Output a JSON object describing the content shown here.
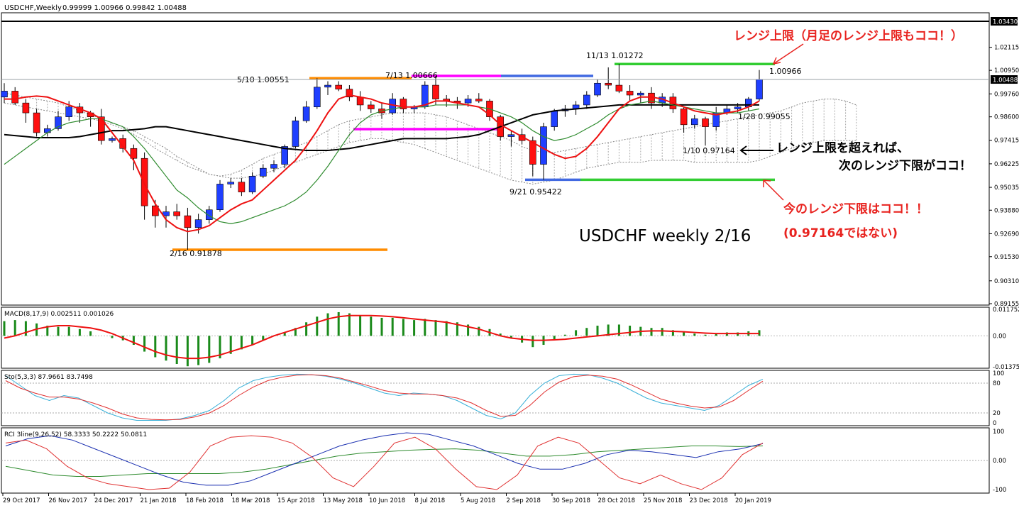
{
  "chart_data": {
    "type": "candlestick",
    "symbol_header": "USDCHF,Weekly",
    "ohlc_header": "0.99999 1.00966 0.99842 1.00488",
    "price_axis_labels": [
      "1.03430",
      "1.02115",
      "1.00950",
      "1.00488",
      "0.99760",
      "0.98600",
      "0.97415",
      "0.96225",
      "0.95035",
      "0.93880",
      "0.92690",
      "0.91530",
      "0.90310",
      "0.89155"
    ],
    "current_price_label": "1.00488",
    "top_price_label": "1.03430",
    "ylim": [
      0.89155,
      1.0343
    ],
    "date_labels": [
      "29 Oct 2017",
      "26 Nov 2017",
      "24 Dec 2017",
      "21 Jan 2018",
      "18 Feb 2018",
      "18 Mar 2018",
      "15 Apr 2018",
      "13 May 2018",
      "10 Jun 2018",
      "8 Jul 2018",
      "5 Aug 2018",
      "2 Sep 2018",
      "30 Sep 2018",
      "28 Oct 2018",
      "25 Nov 2018",
      "23 Dec 2018",
      "20 Jan 2019"
    ],
    "candles": [
      [
        0.996,
        1.003,
        0.993,
        0.999
      ],
      [
        0.999,
        1.001,
        0.992,
        0.993
      ],
      [
        0.993,
        0.995,
        0.983,
        0.988
      ],
      [
        0.988,
        0.99,
        0.976,
        0.978
      ],
      [
        0.978,
        0.982,
        0.976,
        0.98
      ],
      [
        0.98,
        0.989,
        0.979,
        0.986
      ],
      [
        0.986,
        0.994,
        0.984,
        0.991
      ],
      [
        0.991,
        0.993,
        0.983,
        0.988
      ],
      [
        0.988,
        0.989,
        0.981,
        0.986
      ],
      [
        0.986,
        0.99,
        0.972,
        0.974
      ],
      [
        0.974,
        0.976,
        0.973,
        0.975
      ],
      [
        0.975,
        0.977,
        0.968,
        0.97
      ],
      [
        0.97,
        0.972,
        0.959,
        0.965
      ],
      [
        0.965,
        0.968,
        0.934,
        0.941
      ],
      [
        0.941,
        0.944,
        0.93,
        0.936
      ],
      [
        0.936,
        0.941,
        0.93,
        0.938
      ],
      [
        0.938,
        0.942,
        0.934,
        0.936
      ],
      [
        0.936,
        0.94,
        0.9188,
        0.93
      ],
      [
        0.93,
        0.937,
        0.927,
        0.934
      ],
      [
        0.934,
        0.941,
        0.932,
        0.939
      ],
      [
        0.939,
        0.954,
        0.938,
        0.952
      ],
      [
        0.952,
        0.955,
        0.95,
        0.953
      ],
      [
        0.953,
        0.955,
        0.946,
        0.948
      ],
      [
        0.948,
        0.958,
        0.947,
        0.956
      ],
      [
        0.956,
        0.962,
        0.955,
        0.96
      ],
      [
        0.96,
        0.964,
        0.958,
        0.962
      ],
      [
        0.962,
        0.972,
        0.96,
        0.971
      ],
      [
        0.971,
        0.986,
        0.97,
        0.984
      ],
      [
        0.984,
        0.994,
        0.983,
        0.991
      ],
      [
        0.991,
        1.0055,
        0.99,
        1.001
      ],
      [
        1.001,
        1.004,
        0.997,
        1.002
      ],
      [
        1.002,
        1.004,
        0.999,
        1.0
      ],
      [
        1.0,
        1.002,
        0.994,
        0.996
      ],
      [
        0.996,
        0.999,
        0.989,
        0.992
      ],
      [
        0.992,
        0.994,
        0.988,
        0.99
      ],
      [
        0.99,
        0.993,
        0.985,
        0.988
      ],
      [
        0.988,
        0.998,
        0.987,
        0.995
      ],
      [
        0.995,
        0.996,
        0.988,
        0.99
      ],
      [
        0.99,
        0.992,
        0.988,
        0.991
      ],
      [
        0.991,
        1.004,
        0.99,
        1.002
      ],
      [
        1.002,
        1.0067,
        0.992,
        0.995
      ],
      [
        0.995,
        0.997,
        0.991,
        0.994
      ],
      [
        0.994,
        0.996,
        0.99,
        0.993
      ],
      [
        0.993,
        0.997,
        0.991,
        0.995
      ],
      [
        0.995,
        0.998,
        0.993,
        0.994
      ],
      [
        0.994,
        0.995,
        0.984,
        0.986
      ],
      [
        0.986,
        0.987,
        0.974,
        0.976
      ],
      [
        0.976,
        0.979,
        0.971,
        0.977
      ],
      [
        0.977,
        0.98,
        0.972,
        0.974
      ],
      [
        0.974,
        0.976,
        0.956,
        0.962
      ],
      [
        0.962,
        0.983,
        0.9542,
        0.981
      ],
      [
        0.981,
        0.99,
        0.979,
        0.989
      ],
      [
        0.989,
        0.992,
        0.986,
        0.99
      ],
      [
        0.99,
        0.994,
        0.987,
        0.992
      ],
      [
        0.992,
        0.999,
        0.99,
        0.997
      ],
      [
        0.997,
        1.005,
        0.996,
        1.003
      ],
      [
        1.003,
        1.011,
        1.0,
        1.002
      ],
      [
        1.002,
        1.0127,
        0.998,
        0.999
      ],
      [
        0.999,
        1.002,
        0.994,
        0.997
      ],
      [
        0.997,
        0.999,
        0.993,
        0.998
      ],
      [
        0.998,
        1.001,
        0.99,
        0.993
      ],
      [
        0.993,
        0.998,
        0.991,
        0.996
      ],
      [
        0.996,
        0.998,
        0.988,
        0.99
      ],
      [
        0.99,
        0.991,
        0.978,
        0.982
      ],
      [
        0.982,
        0.987,
        0.98,
        0.985
      ],
      [
        0.985,
        0.986,
        0.9716,
        0.981
      ],
      [
        0.981,
        0.991,
        0.979,
        0.988
      ],
      [
        0.988,
        0.992,
        0.987,
        0.99
      ],
      [
        0.99,
        0.993,
        0.988,
        0.991
      ],
      [
        0.991,
        0.996,
        0.989,
        0.995
      ],
      [
        0.995,
        1.0097,
        0.994,
        1.0049
      ]
    ],
    "ma_fast": [
      0.995,
      0.995,
      0.996,
      0.9965,
      0.996,
      0.994,
      0.992,
      0.99,
      0.988,
      0.985,
      0.978,
      0.971,
      0.964,
      0.952,
      0.942,
      0.934,
      0.93,
      0.928,
      0.929,
      0.931,
      0.935,
      0.939,
      0.942,
      0.944,
      0.949,
      0.954,
      0.959,
      0.964,
      0.971,
      0.979,
      0.988,
      0.995,
      0.997,
      0.996,
      0.995,
      0.993,
      0.992,
      0.991,
      0.991,
      0.992,
      0.994,
      0.994,
      0.993,
      0.992,
      0.991,
      0.987,
      0.982,
      0.979,
      0.976,
      0.973,
      0.97,
      0.967,
      0.965,
      0.966,
      0.97,
      0.976,
      0.983,
      0.99,
      0.994,
      0.996,
      0.996,
      0.995,
      0.993,
      0.991,
      0.989,
      0.988,
      0.987,
      0.988,
      0.989,
      0.991,
      0.994
    ],
    "ma_mid": [
      0.962,
      0.966,
      0.97,
      0.974,
      0.978,
      0.981,
      0.983,
      0.984,
      0.985,
      0.985,
      0.983,
      0.981,
      0.976,
      0.97,
      0.963,
      0.956,
      0.949,
      0.945,
      0.94,
      0.936,
      0.933,
      0.932,
      0.933,
      0.935,
      0.937,
      0.939,
      0.941,
      0.944,
      0.948,
      0.954,
      0.961,
      0.969,
      0.977,
      0.983,
      0.987,
      0.989,
      0.99,
      0.991,
      0.991,
      0.991,
      0.992,
      0.992,
      0.992,
      0.992,
      0.991,
      0.99,
      0.988,
      0.986,
      0.983,
      0.979,
      0.976,
      0.974,
      0.975,
      0.977,
      0.98,
      0.983,
      0.987,
      0.99,
      0.992,
      0.993,
      0.994,
      0.993,
      0.992,
      0.991,
      0.99,
      0.989,
      0.988,
      0.988,
      0.988,
      0.989,
      0.99
    ],
    "ma_slow": [
      0.977,
      0.9765,
      0.976,
      0.9755,
      0.9755,
      0.9755,
      0.9755,
      0.976,
      0.977,
      0.978,
      0.979,
      0.979,
      0.9795,
      0.98,
      0.981,
      0.981,
      0.98,
      0.979,
      0.978,
      0.977,
      0.976,
      0.975,
      0.974,
      0.973,
      0.972,
      0.971,
      0.97,
      0.9695,
      0.969,
      0.969,
      0.969,
      0.9695,
      0.97,
      0.971,
      0.972,
      0.973,
      0.974,
      0.975,
      0.975,
      0.975,
      0.975,
      0.975,
      0.9755,
      0.976,
      0.977,
      0.979,
      0.981,
      0.983,
      0.985,
      0.987,
      0.988,
      0.989,
      0.9895,
      0.99,
      0.9905,
      0.991,
      0.9915,
      0.992,
      0.992,
      0.992,
      0.992,
      0.992,
      0.992,
      0.992,
      0.992,
      0.992,
      0.992,
      0.992,
      0.992,
      0.992,
      0.992
    ],
    "cloud_top": [
      0.998,
      0.997,
      0.996,
      0.995,
      0.994,
      0.993,
      0.991,
      0.989,
      0.987,
      0.985,
      0.983,
      0.981,
      0.979,
      0.976,
      0.973,
      0.97,
      0.966,
      0.963,
      0.96,
      0.957,
      0.956,
      0.957,
      0.959,
      0.962,
      0.965,
      0.967,
      0.969,
      0.971,
      0.973,
      0.976,
      0.979,
      0.982,
      0.984,
      0.985,
      0.986,
      0.987,
      0.988,
      0.988,
      0.988,
      0.988,
      0.987,
      0.986,
      0.984,
      0.982,
      0.98,
      0.978,
      0.976,
      0.974,
      0.971,
      0.969,
      0.968,
      0.968,
      0.969,
      0.97,
      0.971,
      0.972,
      0.973,
      0.974,
      0.975,
      0.976,
      0.977,
      0.978,
      0.979,
      0.98,
      0.981,
      0.982,
      0.983,
      0.984,
      0.985,
      0.986,
      0.987,
      0.988,
      0.989,
      0.991,
      0.993,
      0.994,
      0.995,
      0.995,
      0.994,
      0.992
    ],
    "cloud_bottom": [
      0.993,
      0.992,
      0.991,
      0.99,
      0.989,
      0.988,
      0.987,
      0.986,
      0.985,
      0.984,
      0.982,
      0.98,
      0.977,
      0.974,
      0.97,
      0.967,
      0.964,
      0.961,
      0.959,
      0.957,
      0.956,
      0.955,
      0.955,
      0.956,
      0.957,
      0.959,
      0.961,
      0.963,
      0.965,
      0.967,
      0.969,
      0.971,
      0.973,
      0.974,
      0.975,
      0.975,
      0.974,
      0.973,
      0.972,
      0.97,
      0.968,
      0.966,
      0.964,
      0.962,
      0.96,
      0.958,
      0.956,
      0.954,
      0.953,
      0.952,
      0.953,
      0.954,
      0.956,
      0.958,
      0.96,
      0.961,
      0.962,
      0.963,
      0.963,
      0.963,
      0.964,
      0.964,
      0.964,
      0.964,
      0.963,
      0.963,
      0.963,
      0.963,
      0.963,
      0.963,
      0.964,
      0.966,
      0.968,
      0.97,
      0.972,
      0.973,
      0.974,
      0.974,
      0.974,
      0.974
    ],
    "price_annotations": [
      {
        "text": "5/10 1.00551",
        "price": 1.0055
      },
      {
        "text": "7/13 1.00666",
        "price": 1.0067
      },
      {
        "text": "11/13 1.01272",
        "price": 1.0127
      },
      {
        "text": "1.00966",
        "price": 1.0097
      },
      {
        "text": "1/28 0.99055",
        "price": 0.9906
      },
      {
        "text": "1/10 0.97164",
        "price": 0.9716
      },
      {
        "text": "9/21 0.95422",
        "price": 0.9542
      },
      {
        "text": "2/16 0.91878",
        "price": 0.9188
      }
    ],
    "levels": [
      {
        "name": "orange-top",
        "price": 1.0055,
        "color": "#FF8C00"
      },
      {
        "name": "orange-bottom",
        "price": 0.9188,
        "color": "#FF8C00"
      },
      {
        "name": "magenta-top",
        "price": 1.0067,
        "color": "#FF00FF"
      },
      {
        "name": "magenta-bottom",
        "price": 0.9798,
        "color": "#FF00FF"
      },
      {
        "name": "blue-top",
        "price": 1.0067,
        "color": "#4169E1"
      },
      {
        "name": "blue-bottom",
        "price": 0.9542,
        "color": "#4169E1"
      },
      {
        "name": "green-top",
        "price": 1.0127,
        "color": "#32CD32"
      },
      {
        "name": "green-bottom",
        "price": 0.9542,
        "color": "#32CD32"
      }
    ],
    "text_annotations": {
      "range_top": "レンジ上限（月足のレンジ上限もココ！）",
      "exceed_line1": "レンジ上限を超えれば、",
      "exceed_line2": "次のレンジ下限がココ！",
      "range_bottom": "今のレンジ下限はココ！！",
      "not_value": "(0.97164ではない)",
      "title_overlay": "USDCHF weekly 2/16"
    },
    "macd": {
      "label": "MACD(8,17,9) 0.002511 0.001026",
      "axis_labels": [
        "0.011752",
        "0.00",
        "-0.013751"
      ],
      "ylim": [
        -0.013751,
        0.011752
      ],
      "histogram": [
        0.0065,
        0.007,
        0.0065,
        0.0055,
        0.0045,
        0.004,
        0.004,
        0.003,
        0.002,
        0.0,
        -0.001,
        -0.002,
        -0.004,
        -0.007,
        -0.0095,
        -0.011,
        -0.0125,
        -0.0135,
        -0.013,
        -0.012,
        -0.01,
        -0.008,
        -0.006,
        -0.004,
        -0.002,
        0.0,
        0.0015,
        0.0035,
        0.006,
        0.0085,
        0.01,
        0.0105,
        0.01,
        0.009,
        0.0085,
        0.008,
        0.008,
        0.0075,
        0.007,
        0.0075,
        0.007,
        0.0065,
        0.006,
        0.005,
        0.004,
        0.003,
        0.001,
        -0.001,
        -0.003,
        -0.005,
        -0.004,
        -0.0015,
        0.0005,
        0.0025,
        0.0035,
        0.0045,
        0.005,
        0.005,
        0.0045,
        0.004,
        0.0035,
        0.0035,
        0.0025,
        0.002,
        0.001,
        0.0005,
        0.001,
        0.0015,
        0.0015,
        0.002,
        0.0025
      ],
      "signal": [
        -0.001,
        0.0,
        0.0015,
        0.003,
        0.004,
        0.0045,
        0.0045,
        0.004,
        0.0035,
        0.0025,
        0.001,
        -0.001,
        -0.003,
        -0.005,
        -0.007,
        -0.0085,
        -0.0095,
        -0.01,
        -0.01,
        -0.0095,
        -0.0085,
        -0.007,
        -0.0055,
        -0.004,
        -0.002,
        0.0,
        0.0015,
        0.003,
        0.0045,
        0.006,
        0.0075,
        0.0085,
        0.009,
        0.009,
        0.009,
        0.0088,
        0.0085,
        0.008,
        0.0075,
        0.007,
        0.0065,
        0.006,
        0.005,
        0.004,
        0.003,
        0.0015,
        0.0,
        -0.001,
        -0.0015,
        -0.002,
        -0.002,
        -0.0018,
        -0.0015,
        -0.001,
        -0.0005,
        0.0,
        0.0005,
        0.001,
        0.0015,
        0.002,
        0.0022,
        0.0022,
        0.002,
        0.0018,
        0.0015,
        0.0012,
        0.001,
        0.001,
        0.001,
        0.001,
        0.001
      ]
    },
    "stoch": {
      "label": "Sto(5,3,3) 87.9661 83.7498",
      "axis_labels": [
        "100",
        "80",
        "20",
        "0"
      ],
      "main": [
        95,
        75,
        55,
        45,
        55,
        50,
        35,
        20,
        10,
        5,
        5,
        5,
        8,
        15,
        25,
        45,
        70,
        85,
        92,
        96,
        98,
        97,
        94,
        88,
        80,
        70,
        60,
        55,
        60,
        58,
        55,
        45,
        30,
        15,
        8,
        20,
        55,
        80,
        95,
        98,
        97,
        90,
        80,
        65,
        50,
        40,
        35,
        30,
        25,
        35,
        55,
        75,
        88
      ],
      "signal": [
        85,
        70,
        60,
        52,
        52,
        48,
        40,
        30,
        18,
        10,
        7,
        6,
        7,
        12,
        20,
        35,
        55,
        72,
        85,
        92,
        96,
        97,
        95,
        90,
        82,
        74,
        65,
        60,
        58,
        58,
        55,
        50,
        40,
        25,
        13,
        15,
        35,
        62,
        82,
        93,
        96,
        94,
        88,
        76,
        62,
        48,
        40,
        34,
        30,
        32,
        45,
        65,
        84
      ]
    },
    "rci": {
      "label": "RCI 3line(9,26,52) 58.3333 50.2222 50.0811",
      "axis_labels": [
        "100",
        "0.00",
        "-100"
      ],
      "fast": [
        60,
        70,
        40,
        -20,
        -60,
        -80,
        -90,
        -100,
        -95,
        -40,
        50,
        80,
        85,
        80,
        60,
        10,
        -60,
        -90,
        -20,
        60,
        80,
        40,
        -30,
        -90,
        -100,
        -50,
        50,
        80,
        60,
        0,
        -60,
        -80,
        -50,
        -80,
        -100,
        -60,
        20,
        60
      ],
      "mid": [
        50,
        75,
        85,
        70,
        40,
        10,
        -20,
        -50,
        -75,
        -85,
        -85,
        -70,
        -40,
        -10,
        20,
        50,
        70,
        85,
        95,
        90,
        70,
        50,
        20,
        -10,
        -30,
        -30,
        -10,
        20,
        35,
        30,
        20,
        10,
        30,
        40,
        58
      ],
      "slow": [
        -20,
        -35,
        -50,
        -55,
        -55,
        -50,
        -45,
        -45,
        -45,
        -45,
        -40,
        -30,
        -15,
        0,
        15,
        25,
        30,
        35,
        38,
        40,
        35,
        25,
        15,
        15,
        20,
        30,
        35,
        40,
        45,
        50,
        50,
        48,
        50
      ]
    }
  }
}
